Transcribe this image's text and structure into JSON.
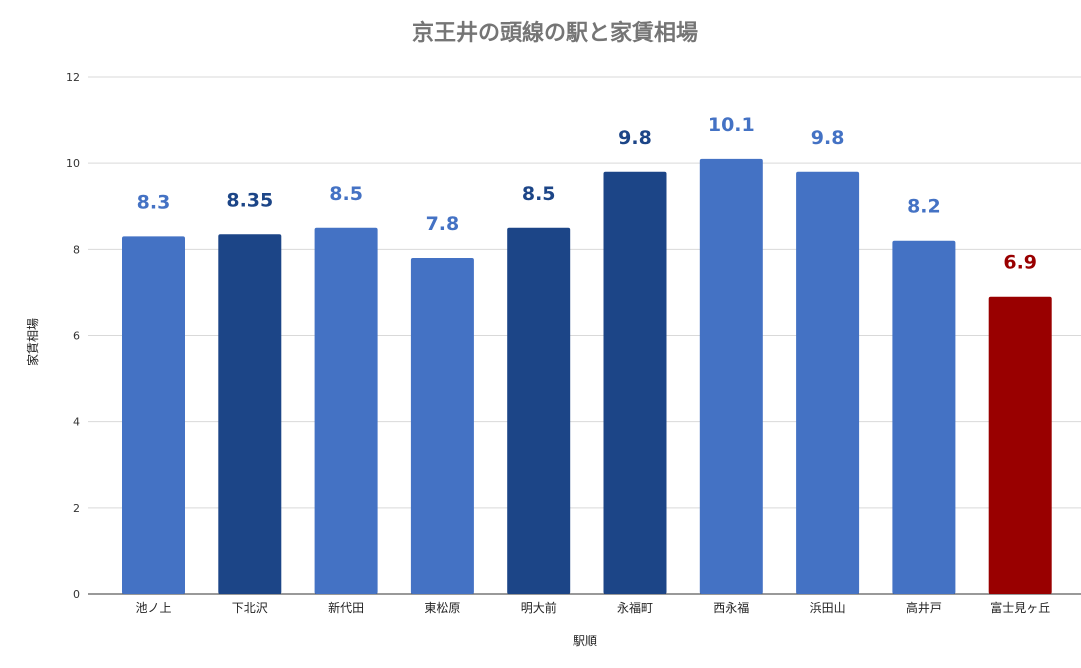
{
  "chart_data": {
    "type": "bar",
    "title": "京王井の頭線の駅と家賃相場",
    "xlabel": "駅順",
    "ylabel": "家賃相場",
    "ylim": [
      0,
      12
    ],
    "yticks": [
      0,
      2,
      4,
      6,
      8,
      10,
      12
    ],
    "grid": true,
    "legend": "none",
    "categories": [
      "池ノ上",
      "下北沢",
      "新代田",
      "東松原",
      "明大前",
      "永福町",
      "西永福",
      "浜田山",
      "高井戸",
      "富士見ヶ丘"
    ],
    "values": [
      8.3,
      8.35,
      8.5,
      7.8,
      8.5,
      9.8,
      10.1,
      9.8,
      8.2,
      6.9
    ],
    "data_labels": [
      "8.3",
      "8.35",
      "8.5",
      "7.8",
      "8.5",
      "9.8",
      "10.1",
      "9.8",
      "8.2",
      "6.9"
    ],
    "bar_colors": [
      "#4472c4",
      "#1c4587",
      "#4472c4",
      "#4472c4",
      "#1c4587",
      "#1c4587",
      "#4472c4",
      "#4472c4",
      "#4472c4",
      "#990000"
    ],
    "label_colors": [
      "#4472c4",
      "#1c4587",
      "#4472c4",
      "#4472c4",
      "#1c4587",
      "#1c4587",
      "#4472c4",
      "#4472c4",
      "#4472c4",
      "#990000"
    ]
  }
}
